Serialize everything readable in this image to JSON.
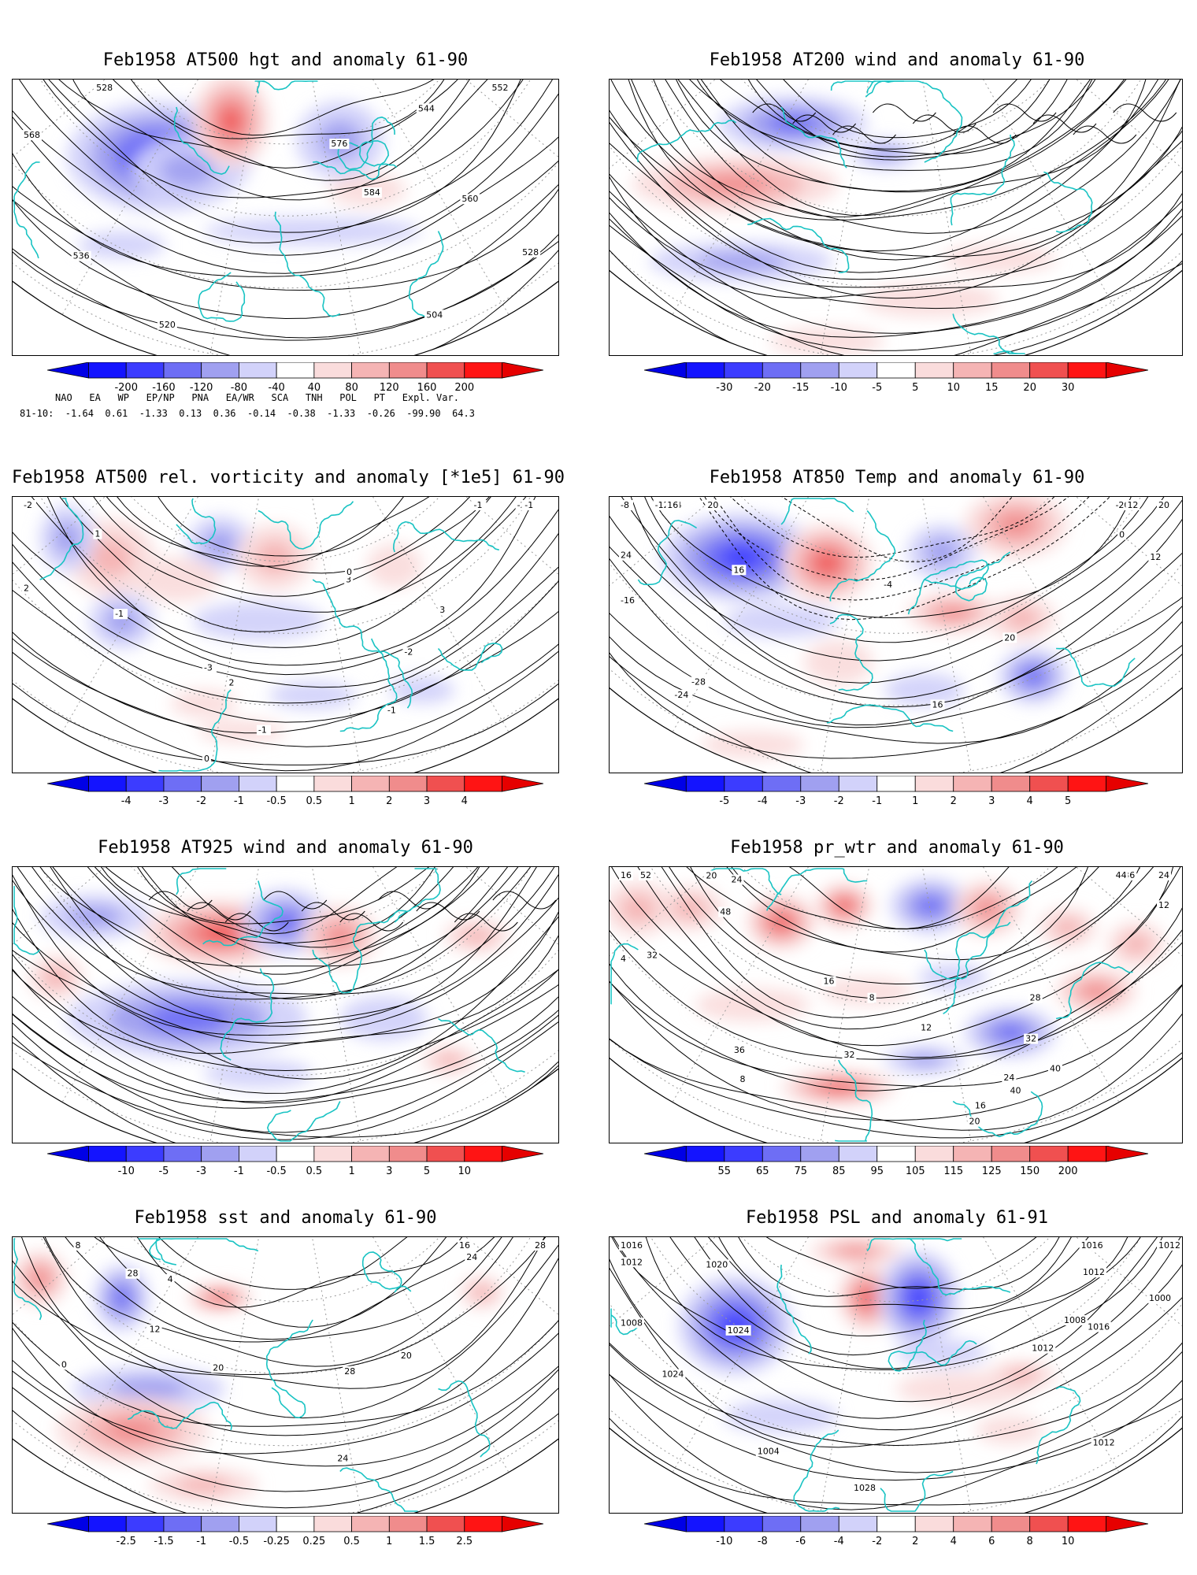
{
  "panels": [
    {
      "id": "p1",
      "title": "Feb1958 AT500 hgt and anomaly 61-90",
      "colorbar_ticks": [
        "-200",
        "-160",
        "-120",
        "-80",
        "-40",
        "40",
        "80",
        "120",
        "160",
        "200"
      ],
      "contour_labels": [
        "504",
        "520",
        "528",
        "536",
        "544",
        "552",
        "560",
        "568",
        "576",
        "584",
        "528"
      ],
      "field_type": "height",
      "stats": {
        "header": [
          "NAO",
          "EA",
          "WP",
          "EP/NP",
          "PNA",
          "EA/WR",
          "SCA",
          "TNH",
          "POL",
          "PT",
          "Expl. Var."
        ],
        "row_label": "81-10:",
        "values": [
          "-1.64",
          "0.61",
          "-1.33",
          "0.13",
          "0.36",
          "-0.14",
          "-0.38",
          "-1.33",
          "-0.26",
          "-99.90",
          "64.3"
        ]
      }
    },
    {
      "id": "p2",
      "title": "Feb1958 AT200 wind and anomaly 61-90",
      "colorbar_ticks": [
        "-30",
        "-20",
        "-15",
        "-10",
        "-5",
        "5",
        "10",
        "15",
        "20",
        "30"
      ],
      "contour_labels": [],
      "field_type": "wind"
    },
    {
      "id": "p3",
      "title": "Feb1958 AT500 rel. vorticity and anomaly [*1e5] 61-90",
      "colorbar_ticks": [
        "-4",
        "-3",
        "-2",
        "-1",
        "-0.5",
        "0.5",
        "1",
        "2",
        "3",
        "4"
      ],
      "contour_labels": [
        "-3",
        "-2",
        "2",
        "1",
        "3",
        "-1",
        "-2",
        "0",
        "-1",
        "2",
        "3",
        "-1",
        "-2",
        "0",
        "-1",
        "0",
        "-1",
        "-2",
        "-1",
        "0"
      ],
      "field_type": "vorticity"
    },
    {
      "id": "p4",
      "title": "Feb1958 AT850 Temp and anomaly 61-90",
      "colorbar_ticks": [
        "-5",
        "-4",
        "-3",
        "-2",
        "-1",
        "1",
        "2",
        "3",
        "4",
        "5"
      ],
      "contour_labels": [
        "-28",
        "-20",
        "-24",
        "-16",
        "-12",
        "-8",
        "-4",
        "0",
        "4",
        "8",
        "12",
        "16",
        "20",
        "24",
        "16",
        "12",
        "20",
        "16",
        "20"
      ],
      "field_type": "temperature"
    },
    {
      "id": "p5",
      "title": "Feb1958 AT925 wind and anomaly 61-90",
      "colorbar_ticks": [
        "-10",
        "-5",
        "-3",
        "-1",
        "-0.5",
        "0.5",
        "1",
        "3",
        "5",
        "10"
      ],
      "contour_labels": [],
      "field_type": "wind"
    },
    {
      "id": "p6",
      "title": "Feb1958 pr_wtr and anomaly 61-90",
      "colorbar_ticks": [
        "55",
        "65",
        "75",
        "85",
        "95",
        "105",
        "115",
        "125",
        "150",
        "200"
      ],
      "contour_labels": [
        "16",
        "20",
        "24",
        "52",
        "36",
        "48",
        "40",
        "32",
        "4",
        "8",
        "12",
        "16",
        "20",
        "24",
        "28",
        "32",
        "36",
        "40",
        "44",
        "16",
        "12",
        "8",
        "24",
        "32"
      ],
      "field_type": "moisture"
    },
    {
      "id": "p7",
      "title": "Feb1958 sst and anomaly 61-90",
      "colorbar_ticks": [
        "-2.5",
        "-1.5",
        "-1",
        "-0.5",
        "-0.25",
        "0.25",
        "0.5",
        "1",
        "1.5",
        "2.5"
      ],
      "contour_labels": [
        "28",
        "20",
        "16",
        "8",
        "12",
        "4",
        "0",
        "24",
        "20",
        "28",
        "24",
        "28"
      ],
      "field_type": "sst"
    },
    {
      "id": "p8",
      "title": "Feb1958 PSL and anomaly 61-91",
      "colorbar_ticks": [
        "-10",
        "-8",
        "-6",
        "-4",
        "-2",
        "2",
        "4",
        "6",
        "8",
        "10"
      ],
      "contour_labels": [
        "1016",
        "1024",
        "1012",
        "1020",
        "1008",
        "1004",
        "1000",
        "1028",
        "1008",
        "1004",
        "1012",
        "1016",
        "1020",
        "1024",
        "1012",
        "1016",
        "1012",
        "1012"
      ],
      "field_type": "pressure"
    }
  ],
  "colors": {
    "blue_scale": [
      "#1414ff",
      "#3c3cff",
      "#6e6ef5",
      "#a0a0f0",
      "#d2d2fa"
    ],
    "red_scale": [
      "#fadcdc",
      "#f5b4b4",
      "#f08c8c",
      "#f05050",
      "#ff1414"
    ],
    "coast": "#19c3c3",
    "contour": "#000000",
    "grid": "#9a9a9a"
  }
}
